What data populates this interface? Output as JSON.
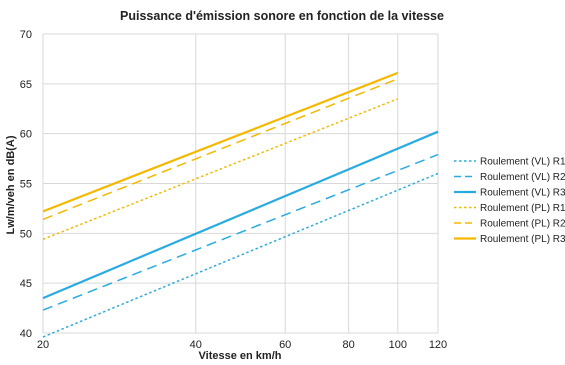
{
  "chart_data": {
    "type": "line",
    "title": "Puissance d'émission sonore en fonction de la vitesse",
    "xlabel": "Vitesse en km/h",
    "ylabel": "Lw/m/veh en dB(A)",
    "x_scale": "log",
    "xlim": [
      20,
      120
    ],
    "ylim": [
      40,
      70
    ],
    "x_ticks": [
      20,
      40,
      60,
      80,
      100,
      120
    ],
    "y_ticks": [
      40,
      45,
      50,
      55,
      60,
      65,
      70
    ],
    "grid": true,
    "legend_position": "right",
    "series": [
      {
        "name": "Roulement (VL) R1",
        "color": "#29ABE2",
        "style": "dotted",
        "x": [
          20,
          120
        ],
        "y": [
          39.6,
          56.0
        ]
      },
      {
        "name": "Roulement (VL) R2",
        "color": "#29ABE2",
        "style": "dashed",
        "x": [
          20,
          120
        ],
        "y": [
          42.3,
          57.9
        ]
      },
      {
        "name": "Roulement (VL) R3",
        "color": "#29ABE2",
        "style": "solid",
        "x": [
          20,
          120
        ],
        "y": [
          43.5,
          60.2
        ]
      },
      {
        "name": "Roulement (PL) R1",
        "color": "#F5B800",
        "style": "dotted",
        "x": [
          20,
          100
        ],
        "y": [
          49.4,
          63.5
        ]
      },
      {
        "name": "Roulement (PL) R2",
        "color": "#F5B800",
        "style": "dashed",
        "x": [
          20,
          100
        ],
        "y": [
          51.4,
          65.5
        ]
      },
      {
        "name": "Roulement (PL) R3",
        "color": "#F5B800",
        "style": "solid",
        "x": [
          20,
          100
        ],
        "y": [
          52.2,
          66.1
        ]
      }
    ]
  }
}
